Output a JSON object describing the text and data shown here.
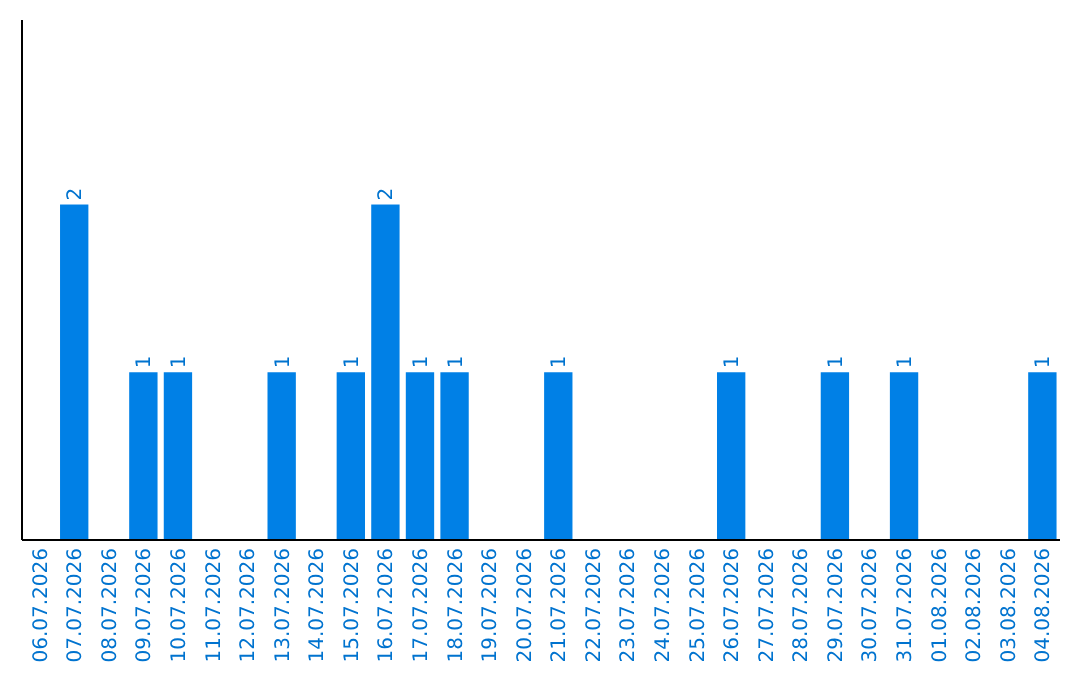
{
  "chart_data": {
    "type": "bar",
    "categories": [
      "06.07.2026",
      "07.07.2026",
      "08.07.2026",
      "09.07.2026",
      "10.07.2026",
      "11.07.2026",
      "12.07.2026",
      "13.07.2026",
      "14.07.2026",
      "15.07.2026",
      "16.07.2026",
      "17.07.2026",
      "18.07.2026",
      "19.07.2026",
      "20.07.2026",
      "21.07.2026",
      "22.07.2026",
      "23.07.2026",
      "24.07.2026",
      "25.07.2026",
      "26.07.2026",
      "27.07.2026",
      "28.07.2026",
      "29.07.2026",
      "30.07.2026",
      "31.07.2026",
      "01.08.2026",
      "02.08.2026",
      "03.08.2026",
      "04.08.2026"
    ],
    "values": [
      0,
      2,
      0,
      1,
      1,
      0,
      0,
      1,
      0,
      1,
      2,
      1,
      1,
      0,
      0,
      1,
      0,
      0,
      0,
      0,
      1,
      0,
      0,
      1,
      0,
      1,
      0,
      0,
      0,
      1
    ],
    "value_labels": [
      null,
      "2",
      null,
      "1",
      "1",
      null,
      null,
      "1",
      null,
      "1",
      "2",
      "1",
      "1",
      null,
      null,
      "1",
      null,
      null,
      null,
      null,
      "1",
      null,
      null,
      "1",
      null,
      "1",
      null,
      null,
      null,
      "1"
    ],
    "color": "#0080e6",
    "ylim": [
      0,
      3.1
    ],
    "tick_labels": "x"
  }
}
